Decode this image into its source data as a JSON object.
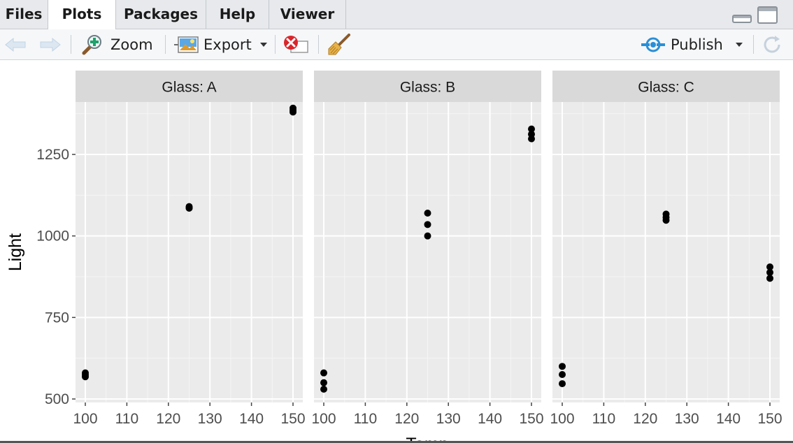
{
  "tabs": [
    {
      "label": "Files"
    },
    {
      "label": "Plots"
    },
    {
      "label": "Packages"
    },
    {
      "label": "Help"
    },
    {
      "label": "Viewer"
    }
  ],
  "active_tab": "Plots",
  "toolbar": {
    "zoom_label": "Zoom",
    "export_label": "Export",
    "publish_label": "Publish"
  },
  "icons": {
    "back": "arrow-left-icon",
    "forward": "arrow-right-icon",
    "zoom": "magnifier-icon",
    "export": "image-export-icon",
    "remove": "remove-plot-icon",
    "clear": "broom-icon",
    "publish": "publish-icon",
    "refresh": "refresh-icon",
    "minimize": "minimize-icon",
    "maximize": "maximize-icon"
  },
  "colors": {
    "panel_bg": "#ebebeb",
    "strip_bg": "#d9d9d9",
    "point": "#000000",
    "publish_accent": "#2a8fd6",
    "remove_accent": "#d9262b"
  },
  "chart_data": {
    "type": "scatter",
    "facet_labels": [
      "Glass: A",
      "Glass: B",
      "Glass: C"
    ],
    "xlabel": "Temp",
    "ylabel": "Light",
    "xlim": [
      100,
      150
    ],
    "ylim": [
      500,
      1400
    ],
    "x_ticks": [
      100,
      110,
      120,
      130,
      140,
      150
    ],
    "y_ticks": [
      500,
      750,
      1000,
      1250
    ],
    "grid": true,
    "panels": [
      {
        "label": "Glass: A",
        "points": [
          {
            "x": 100,
            "y": 580
          },
          {
            "x": 100,
            "y": 568
          },
          {
            "x": 100,
            "y": 574
          },
          {
            "x": 125,
            "y": 1090
          },
          {
            "x": 125,
            "y": 1085
          },
          {
            "x": 125,
            "y": 1087
          },
          {
            "x": 150,
            "y": 1380
          },
          {
            "x": 150,
            "y": 1386
          },
          {
            "x": 150,
            "y": 1392
          }
        ]
      },
      {
        "label": "Glass: B",
        "points": [
          {
            "x": 100,
            "y": 580
          },
          {
            "x": 100,
            "y": 550
          },
          {
            "x": 100,
            "y": 530
          },
          {
            "x": 125,
            "y": 1070
          },
          {
            "x": 125,
            "y": 1035
          },
          {
            "x": 125,
            "y": 1000
          },
          {
            "x": 150,
            "y": 1328
          },
          {
            "x": 150,
            "y": 1312
          },
          {
            "x": 150,
            "y": 1298
          }
        ]
      },
      {
        "label": "Glass: C",
        "points": [
          {
            "x": 100,
            "y": 600
          },
          {
            "x": 100,
            "y": 575
          },
          {
            "x": 100,
            "y": 547
          },
          {
            "x": 125,
            "y": 1067
          },
          {
            "x": 125,
            "y": 1057
          },
          {
            "x": 125,
            "y": 1048
          },
          {
            "x": 150,
            "y": 905
          },
          {
            "x": 150,
            "y": 888
          },
          {
            "x": 150,
            "y": 870
          }
        ]
      }
    ]
  }
}
